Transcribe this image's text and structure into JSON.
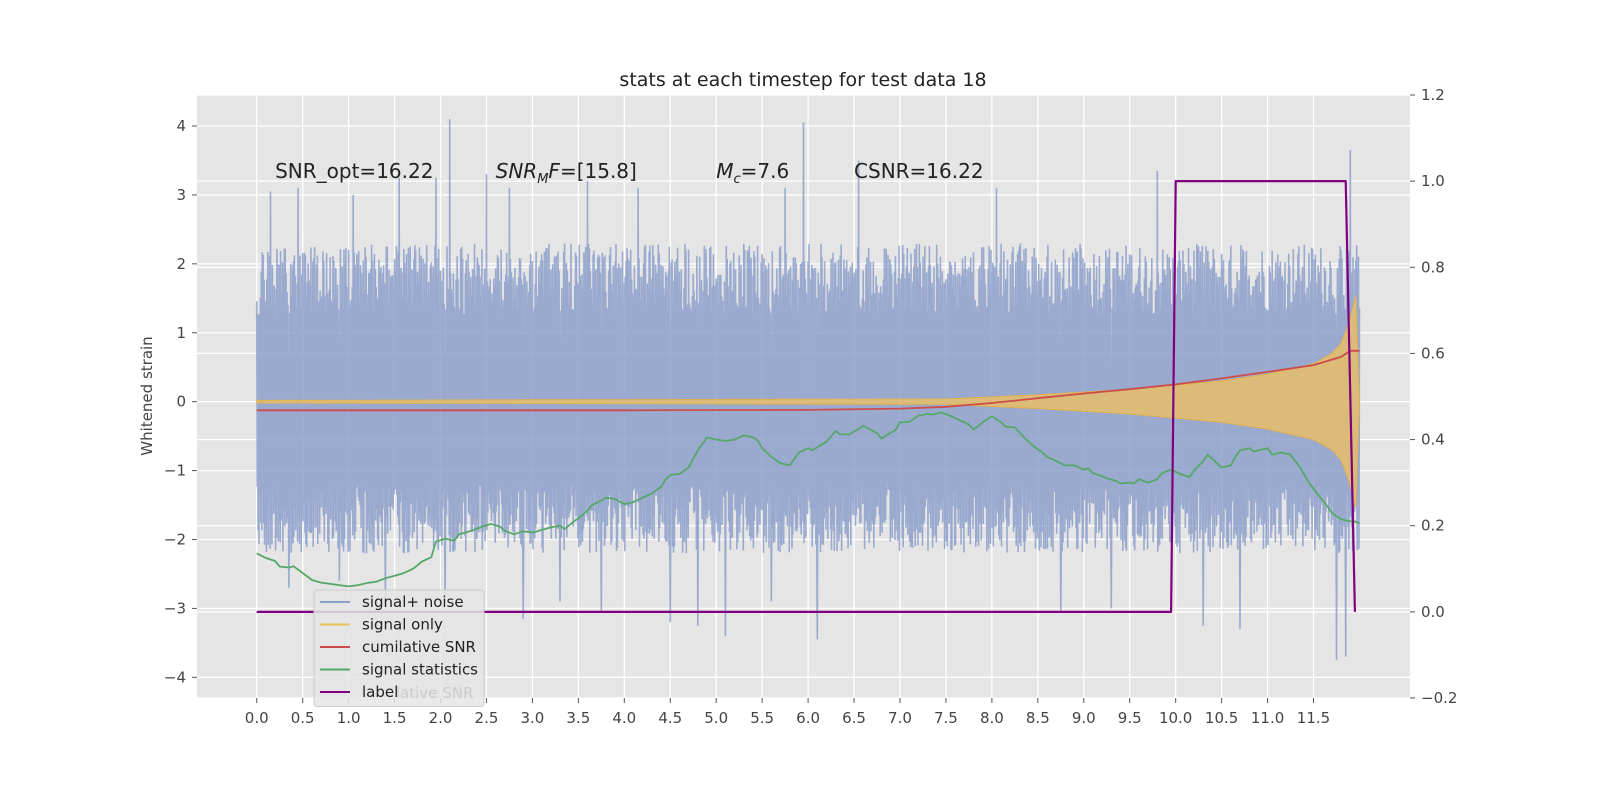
{
  "chart_data": {
    "type": "line",
    "title": "stats at each timestep for test data 18",
    "ylabel": "Whitened strain",
    "xlim": [
      -0.65,
      12.55
    ],
    "ylim": [
      -4.3,
      4.45
    ],
    "y2lim": [
      -0.2,
      1.2
    ],
    "grid": true,
    "x_ticks": [
      0.0,
      0.5,
      1.0,
      1.5,
      2.0,
      2.5,
      3.0,
      3.5,
      4.0,
      4.5,
      5.0,
      5.5,
      6.0,
      6.5,
      7.0,
      7.5,
      8.0,
      8.5,
      9.0,
      9.5,
      10.0,
      10.5,
      11.0,
      11.5
    ],
    "x_tick_labels": [
      "0.0",
      "0.5",
      "1.0",
      "1.5",
      "2.0",
      "2.5",
      "3.0",
      "3.5",
      "4.0",
      "4.5",
      "5.0",
      "5.5",
      "6.0",
      "6.5",
      "7.0",
      "7.5",
      "8.0",
      "8.5",
      "9.0",
      "9.5",
      "10.0",
      "10.5",
      "11.0",
      "11.5"
    ],
    "y_ticks": [
      -4,
      -3,
      -2,
      -1,
      0,
      1,
      2,
      3,
      4
    ],
    "y_tick_labels": [
      "−4",
      "−3",
      "−2",
      "−1",
      "0",
      "1",
      "2",
      "3",
      "4"
    ],
    "y2_ticks": [
      -0.2,
      0.0,
      0.2,
      0.4,
      0.6,
      0.8,
      1.0,
      1.2
    ],
    "y2_tick_labels": [
      "−0.2",
      "0.0",
      "0.2",
      "0.4",
      "0.6",
      "0.8",
      "1.0",
      "1.2"
    ],
    "annotations": [
      {
        "id": "snr-opt",
        "text": "SNR_opt=16.22",
        "x": 0.2,
        "y": 3.35
      },
      {
        "id": "snr-mf",
        "text": "SNR_MF=[15.8]",
        "base": "SNR",
        "sub": "M",
        "rest": "F=[15.8]",
        "x": 2.6,
        "y": 3.35
      },
      {
        "id": "mc",
        "text": "M_c=7.6",
        "base": "M",
        "sub": "c",
        "rest": "=7.6",
        "x": 5.0,
        "y": 3.35
      },
      {
        "id": "csnr",
        "text": "CSNR=16.22",
        "x": 6.5,
        "y": 3.35
      }
    ],
    "legend": {
      "placement": "lower-left",
      "entries": [
        {
          "label": "signal+ noise",
          "color": "#8da0cb"
        },
        {
          "label": "signal only",
          "color": "#f0c05a"
        },
        {
          "label": "cumilative SNR",
          "color": "#cc4c4c"
        },
        {
          "label": "signal statistics",
          "color": "#55a868"
        },
        {
          "label": "label",
          "color": "#800080"
        }
      ],
      "hidden_text": "lative SNR"
    },
    "series": [
      {
        "name": "signal+ noise",
        "axis": "left",
        "color": "#8da0cb",
        "style": "dense noise trace",
        "x_range": [
          0.0,
          12.0
        ],
        "envelope_upper": [
          [
            0.0,
            2.2
          ],
          [
            1.0,
            2.3
          ],
          [
            2.0,
            2.3
          ],
          [
            3.0,
            2.3
          ],
          [
            4.0,
            2.3
          ],
          [
            5.0,
            2.3
          ],
          [
            6.0,
            2.3
          ],
          [
            7.0,
            2.3
          ],
          [
            8.0,
            2.3
          ],
          [
            9.0,
            2.3
          ],
          [
            10.0,
            2.3
          ],
          [
            11.0,
            2.3
          ],
          [
            12.0,
            2.3
          ]
        ],
        "envelope_lower": [
          [
            0.0,
            -2.2
          ],
          [
            12.0,
            -2.2
          ]
        ],
        "spikes": [
          [
            0.15,
            3.05
          ],
          [
            0.45,
            3.1
          ],
          [
            1.05,
            3.0
          ],
          [
            1.55,
            3.25
          ],
          [
            1.95,
            3.25
          ],
          [
            2.1,
            4.1
          ],
          [
            2.5,
            3.3
          ],
          [
            2.75,
            3.1
          ],
          [
            3.6,
            3.2
          ],
          [
            4.15,
            3.1
          ],
          [
            5.75,
            3.1
          ],
          [
            5.95,
            4.05
          ],
          [
            6.55,
            3.5
          ],
          [
            8.05,
            3.1
          ],
          [
            9.8,
            3.35
          ],
          [
            11.9,
            3.65
          ],
          [
            0.35,
            -2.7
          ],
          [
            0.9,
            -2.6
          ],
          [
            1.4,
            -2.9
          ],
          [
            2.05,
            -2.8
          ],
          [
            2.9,
            -3.15
          ],
          [
            3.3,
            -2.9
          ],
          [
            3.75,
            -3.05
          ],
          [
            4.5,
            -3.2
          ],
          [
            4.8,
            -3.25
          ],
          [
            5.1,
            -3.4
          ],
          [
            5.6,
            -2.9
          ],
          [
            6.1,
            -3.45
          ],
          [
            8.75,
            -3.05
          ],
          [
            9.3,
            -3.0
          ],
          [
            10.3,
            -3.25
          ],
          [
            10.7,
            -3.3
          ],
          [
            11.75,
            -3.75
          ],
          [
            11.85,
            -3.7
          ]
        ]
      },
      {
        "name": "signal only",
        "axis": "left",
        "color": "#f0c05a",
        "style": "chirp band",
        "band_amplitude": [
          [
            0.0,
            0.02
          ],
          [
            7.5,
            0.04
          ],
          [
            8.0,
            0.07
          ],
          [
            8.5,
            0.1
          ],
          [
            9.0,
            0.14
          ],
          [
            9.5,
            0.18
          ],
          [
            10.0,
            0.24
          ],
          [
            10.5,
            0.3
          ],
          [
            11.0,
            0.4
          ],
          [
            11.5,
            0.55
          ],
          [
            11.7,
            0.7
          ],
          [
            11.8,
            0.85
          ],
          [
            11.9,
            1.2
          ],
          [
            11.97,
            1.6
          ],
          [
            12.0,
            0.0
          ]
        ]
      },
      {
        "name": "cumilative SNR",
        "axis": "right",
        "color": "#cc4c4c",
        "points": [
          [
            0.0,
            0.468
          ],
          [
            2.0,
            0.468
          ],
          [
            4.0,
            0.468
          ],
          [
            6.0,
            0.469
          ],
          [
            7.0,
            0.472
          ],
          [
            7.5,
            0.476
          ],
          [
            8.0,
            0.485
          ],
          [
            8.5,
            0.496
          ],
          [
            9.0,
            0.507
          ],
          [
            9.5,
            0.517
          ],
          [
            10.0,
            0.528
          ],
          [
            10.5,
            0.542
          ],
          [
            11.0,
            0.557
          ],
          [
            11.5,
            0.573
          ],
          [
            11.8,
            0.592
          ],
          [
            11.9,
            0.606
          ],
          [
            12.0,
            0.606
          ]
        ]
      },
      {
        "name": "signal statistics",
        "axis": "right",
        "color": "#55a868",
        "points": [
          [
            0.0,
            0.136
          ],
          [
            0.1,
            0.125
          ],
          [
            0.2,
            0.118
          ],
          [
            0.25,
            0.105
          ],
          [
            0.35,
            0.103
          ],
          [
            0.4,
            0.106
          ],
          [
            0.45,
            0.098
          ],
          [
            0.55,
            0.082
          ],
          [
            0.6,
            0.074
          ],
          [
            0.7,
            0.068
          ],
          [
            0.8,
            0.065
          ],
          [
            0.9,
            0.062
          ],
          [
            1.0,
            0.059
          ],
          [
            1.1,
            0.062
          ],
          [
            1.2,
            0.067
          ],
          [
            1.3,
            0.07
          ],
          [
            1.4,
            0.078
          ],
          [
            1.5,
            0.084
          ],
          [
            1.6,
            0.09
          ],
          [
            1.7,
            0.1
          ],
          [
            1.8,
            0.117
          ],
          [
            1.9,
            0.127
          ],
          [
            1.95,
            0.163
          ],
          [
            2.05,
            0.17
          ],
          [
            2.15,
            0.165
          ],
          [
            2.2,
            0.18
          ],
          [
            2.3,
            0.186
          ],
          [
            2.4,
            0.193
          ],
          [
            2.45,
            0.198
          ],
          [
            2.55,
            0.204
          ],
          [
            2.65,
            0.198
          ],
          [
            2.7,
            0.188
          ],
          [
            2.8,
            0.18
          ],
          [
            2.9,
            0.187
          ],
          [
            3.0,
            0.184
          ],
          [
            3.1,
            0.19
          ],
          [
            3.2,
            0.196
          ],
          [
            3.3,
            0.2
          ],
          [
            3.35,
            0.192
          ],
          [
            3.45,
            0.21
          ],
          [
            3.5,
            0.217
          ],
          [
            3.6,
            0.235
          ],
          [
            3.65,
            0.248
          ],
          [
            3.75,
            0.258
          ],
          [
            3.8,
            0.265
          ],
          [
            3.9,
            0.262
          ],
          [
            4.0,
            0.25
          ],
          [
            4.1,
            0.255
          ],
          [
            4.2,
            0.265
          ],
          [
            4.3,
            0.275
          ],
          [
            4.4,
            0.29
          ],
          [
            4.45,
            0.308
          ],
          [
            4.5,
            0.318
          ],
          [
            4.6,
            0.32
          ],
          [
            4.7,
            0.335
          ],
          [
            4.8,
            0.375
          ],
          [
            4.9,
            0.405
          ],
          [
            5.0,
            0.4
          ],
          [
            5.1,
            0.397
          ],
          [
            5.2,
            0.4
          ],
          [
            5.3,
            0.41
          ],
          [
            5.4,
            0.405
          ],
          [
            5.45,
            0.398
          ],
          [
            5.5,
            0.38
          ],
          [
            5.6,
            0.36
          ],
          [
            5.7,
            0.345
          ],
          [
            5.8,
            0.34
          ],
          [
            5.85,
            0.355
          ],
          [
            5.9,
            0.37
          ],
          [
            6.0,
            0.38
          ],
          [
            6.05,
            0.375
          ],
          [
            6.1,
            0.382
          ],
          [
            6.2,
            0.395
          ],
          [
            6.3,
            0.42
          ],
          [
            6.35,
            0.412
          ],
          [
            6.45,
            0.412
          ],
          [
            6.55,
            0.425
          ],
          [
            6.6,
            0.432
          ],
          [
            6.75,
            0.415
          ],
          [
            6.8,
            0.402
          ],
          [
            6.85,
            0.41
          ],
          [
            6.95,
            0.422
          ],
          [
            7.0,
            0.44
          ],
          [
            7.1,
            0.441
          ],
          [
            7.15,
            0.448
          ],
          [
            7.2,
            0.456
          ],
          [
            7.25,
            0.457
          ],
          [
            7.3,
            0.46
          ],
          [
            7.35,
            0.458
          ],
          [
            7.45,
            0.463
          ],
          [
            7.55,
            0.455
          ],
          [
            7.65,
            0.445
          ],
          [
            7.75,
            0.435
          ],
          [
            7.8,
            0.423
          ],
          [
            7.9,
            0.44
          ],
          [
            8.0,
            0.454
          ],
          [
            8.1,
            0.44
          ],
          [
            8.15,
            0.43
          ],
          [
            8.25,
            0.428
          ],
          [
            8.35,
            0.405
          ],
          [
            8.45,
            0.385
          ],
          [
            8.55,
            0.37
          ],
          [
            8.6,
            0.36
          ],
          [
            8.7,
            0.35
          ],
          [
            8.8,
            0.34
          ],
          [
            8.9,
            0.34
          ],
          [
            9.0,
            0.33
          ],
          [
            9.05,
            0.333
          ],
          [
            9.1,
            0.322
          ],
          [
            9.2,
            0.315
          ],
          [
            9.25,
            0.31
          ],
          [
            9.35,
            0.304
          ],
          [
            9.4,
            0.298
          ],
          [
            9.5,
            0.3
          ],
          [
            9.55,
            0.298
          ],
          [
            9.6,
            0.308
          ],
          [
            9.7,
            0.3
          ],
          [
            9.8,
            0.308
          ],
          [
            9.85,
            0.322
          ],
          [
            9.95,
            0.33
          ],
          [
            10.05,
            0.32
          ],
          [
            10.15,
            0.313
          ],
          [
            10.2,
            0.328
          ],
          [
            10.3,
            0.35
          ],
          [
            10.35,
            0.365
          ],
          [
            10.45,
            0.345
          ],
          [
            10.5,
            0.335
          ],
          [
            10.6,
            0.34
          ],
          [
            10.65,
            0.36
          ],
          [
            10.7,
            0.375
          ],
          [
            10.8,
            0.38
          ],
          [
            10.85,
            0.372
          ],
          [
            10.9,
            0.375
          ],
          [
            11.0,
            0.38
          ],
          [
            11.05,
            0.365
          ],
          [
            11.15,
            0.37
          ],
          [
            11.25,
            0.365
          ],
          [
            11.3,
            0.35
          ],
          [
            11.35,
            0.337
          ],
          [
            11.45,
            0.3
          ],
          [
            11.55,
            0.272
          ],
          [
            11.65,
            0.245
          ],
          [
            11.7,
            0.23
          ],
          [
            11.8,
            0.215
          ],
          [
            11.9,
            0.21
          ],
          [
            11.95,
            0.21
          ],
          [
            12.0,
            0.205
          ]
        ]
      },
      {
        "name": "label",
        "axis": "right",
        "color": "#800080",
        "points": [
          [
            0.0,
            0.0
          ],
          [
            9.95,
            0.0
          ],
          [
            10.0,
            1.0
          ],
          [
            11.85,
            1.0
          ],
          [
            11.95,
            0.0
          ]
        ]
      }
    ]
  }
}
